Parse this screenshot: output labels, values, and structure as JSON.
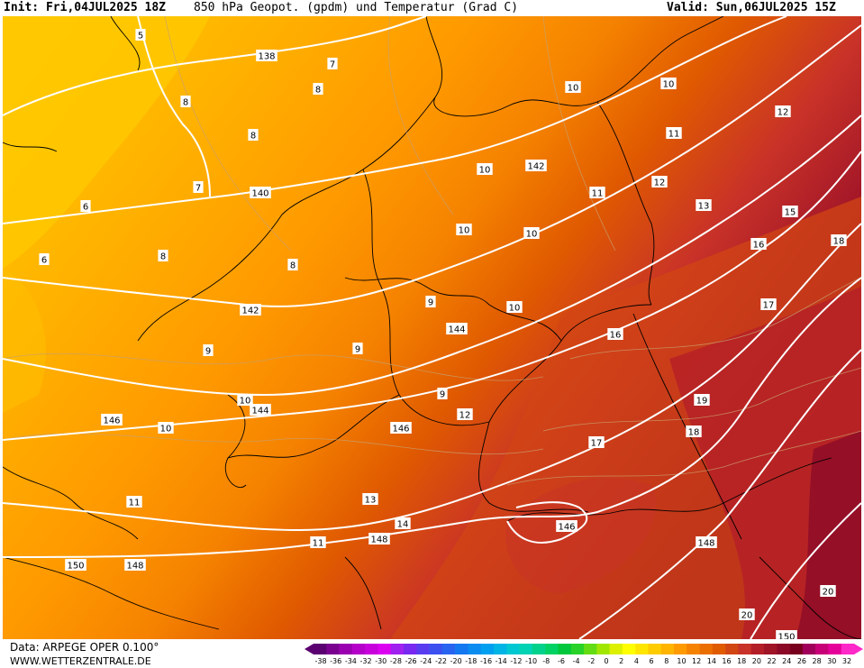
{
  "header": {
    "init": "Init: Fri,04JUL2025 18Z",
    "title": "850 hPa Geopot. (gpdm) und Temperatur (Grad C)",
    "valid": "Valid: Sun,06JUL2025 15Z"
  },
  "footer": {
    "data_source": "Data: ARPEGE OPER 0.100°",
    "website": "WWW.WETTERZENTRALE.DE"
  },
  "legend": {
    "unit": "Grad C",
    "tick_labels": [
      "-38",
      "-36",
      "-34",
      "-32",
      "-30",
      "-28",
      "-26",
      "-24",
      "-22",
      "-20",
      "-18",
      "-16",
      "-14",
      "-12",
      "-10",
      "-8",
      "-6",
      "-4",
      "-2",
      "0",
      "2",
      "4",
      "6",
      "8",
      "10",
      "12",
      "14",
      "16",
      "18",
      "20",
      "22",
      "24",
      "26",
      "28",
      "30",
      "32"
    ],
    "colors": [
      "#5a0070",
      "#7a0090",
      "#9a00b0",
      "#b400c8",
      "#c800dc",
      "#dc00f0",
      "#a020f0",
      "#7828f0",
      "#5a3cf0",
      "#3c50f0",
      "#2864f0",
      "#1478f0",
      "#0a8cf0",
      "#00a0f0",
      "#00b4e6",
      "#00c8d2",
      "#00d2b4",
      "#00d28c",
      "#00d264",
      "#00c83c",
      "#28d228",
      "#64dc14",
      "#a0e600",
      "#dcf000",
      "#ffff00",
      "#ffe600",
      "#ffcc00",
      "#ffb400",
      "#ff9a00",
      "#f58200",
      "#eb6e00",
      "#e05a00",
      "#d24614",
      "#c83228",
      "#b41e28",
      "#a01428",
      "#8c0a28",
      "#78001e",
      "#a0005a",
      "#c80078",
      "#e6009a",
      "#ff28c8"
    ]
  },
  "map": {
    "geopotential_labels": [
      "138",
      "140",
      "142",
      "142",
      "144",
      "144",
      "146",
      "146",
      "146",
      "148",
      "148",
      "148",
      "150",
      "150"
    ],
    "temperature_labels": [
      "5",
      "7",
      "8",
      "8",
      "8",
      "7",
      "6",
      "6",
      "8",
      "8",
      "9",
      "9",
      "9",
      "9",
      "10",
      "10",
      "10",
      "10",
      "10",
      "10",
      "10",
      "10",
      "11",
      "11",
      "11",
      "11",
      "12",
      "12",
      "12",
      "13",
      "13",
      "14",
      "15",
      "16",
      "16",
      "17",
      "17",
      "18",
      "18",
      "19",
      "20",
      "20"
    ]
  }
}
